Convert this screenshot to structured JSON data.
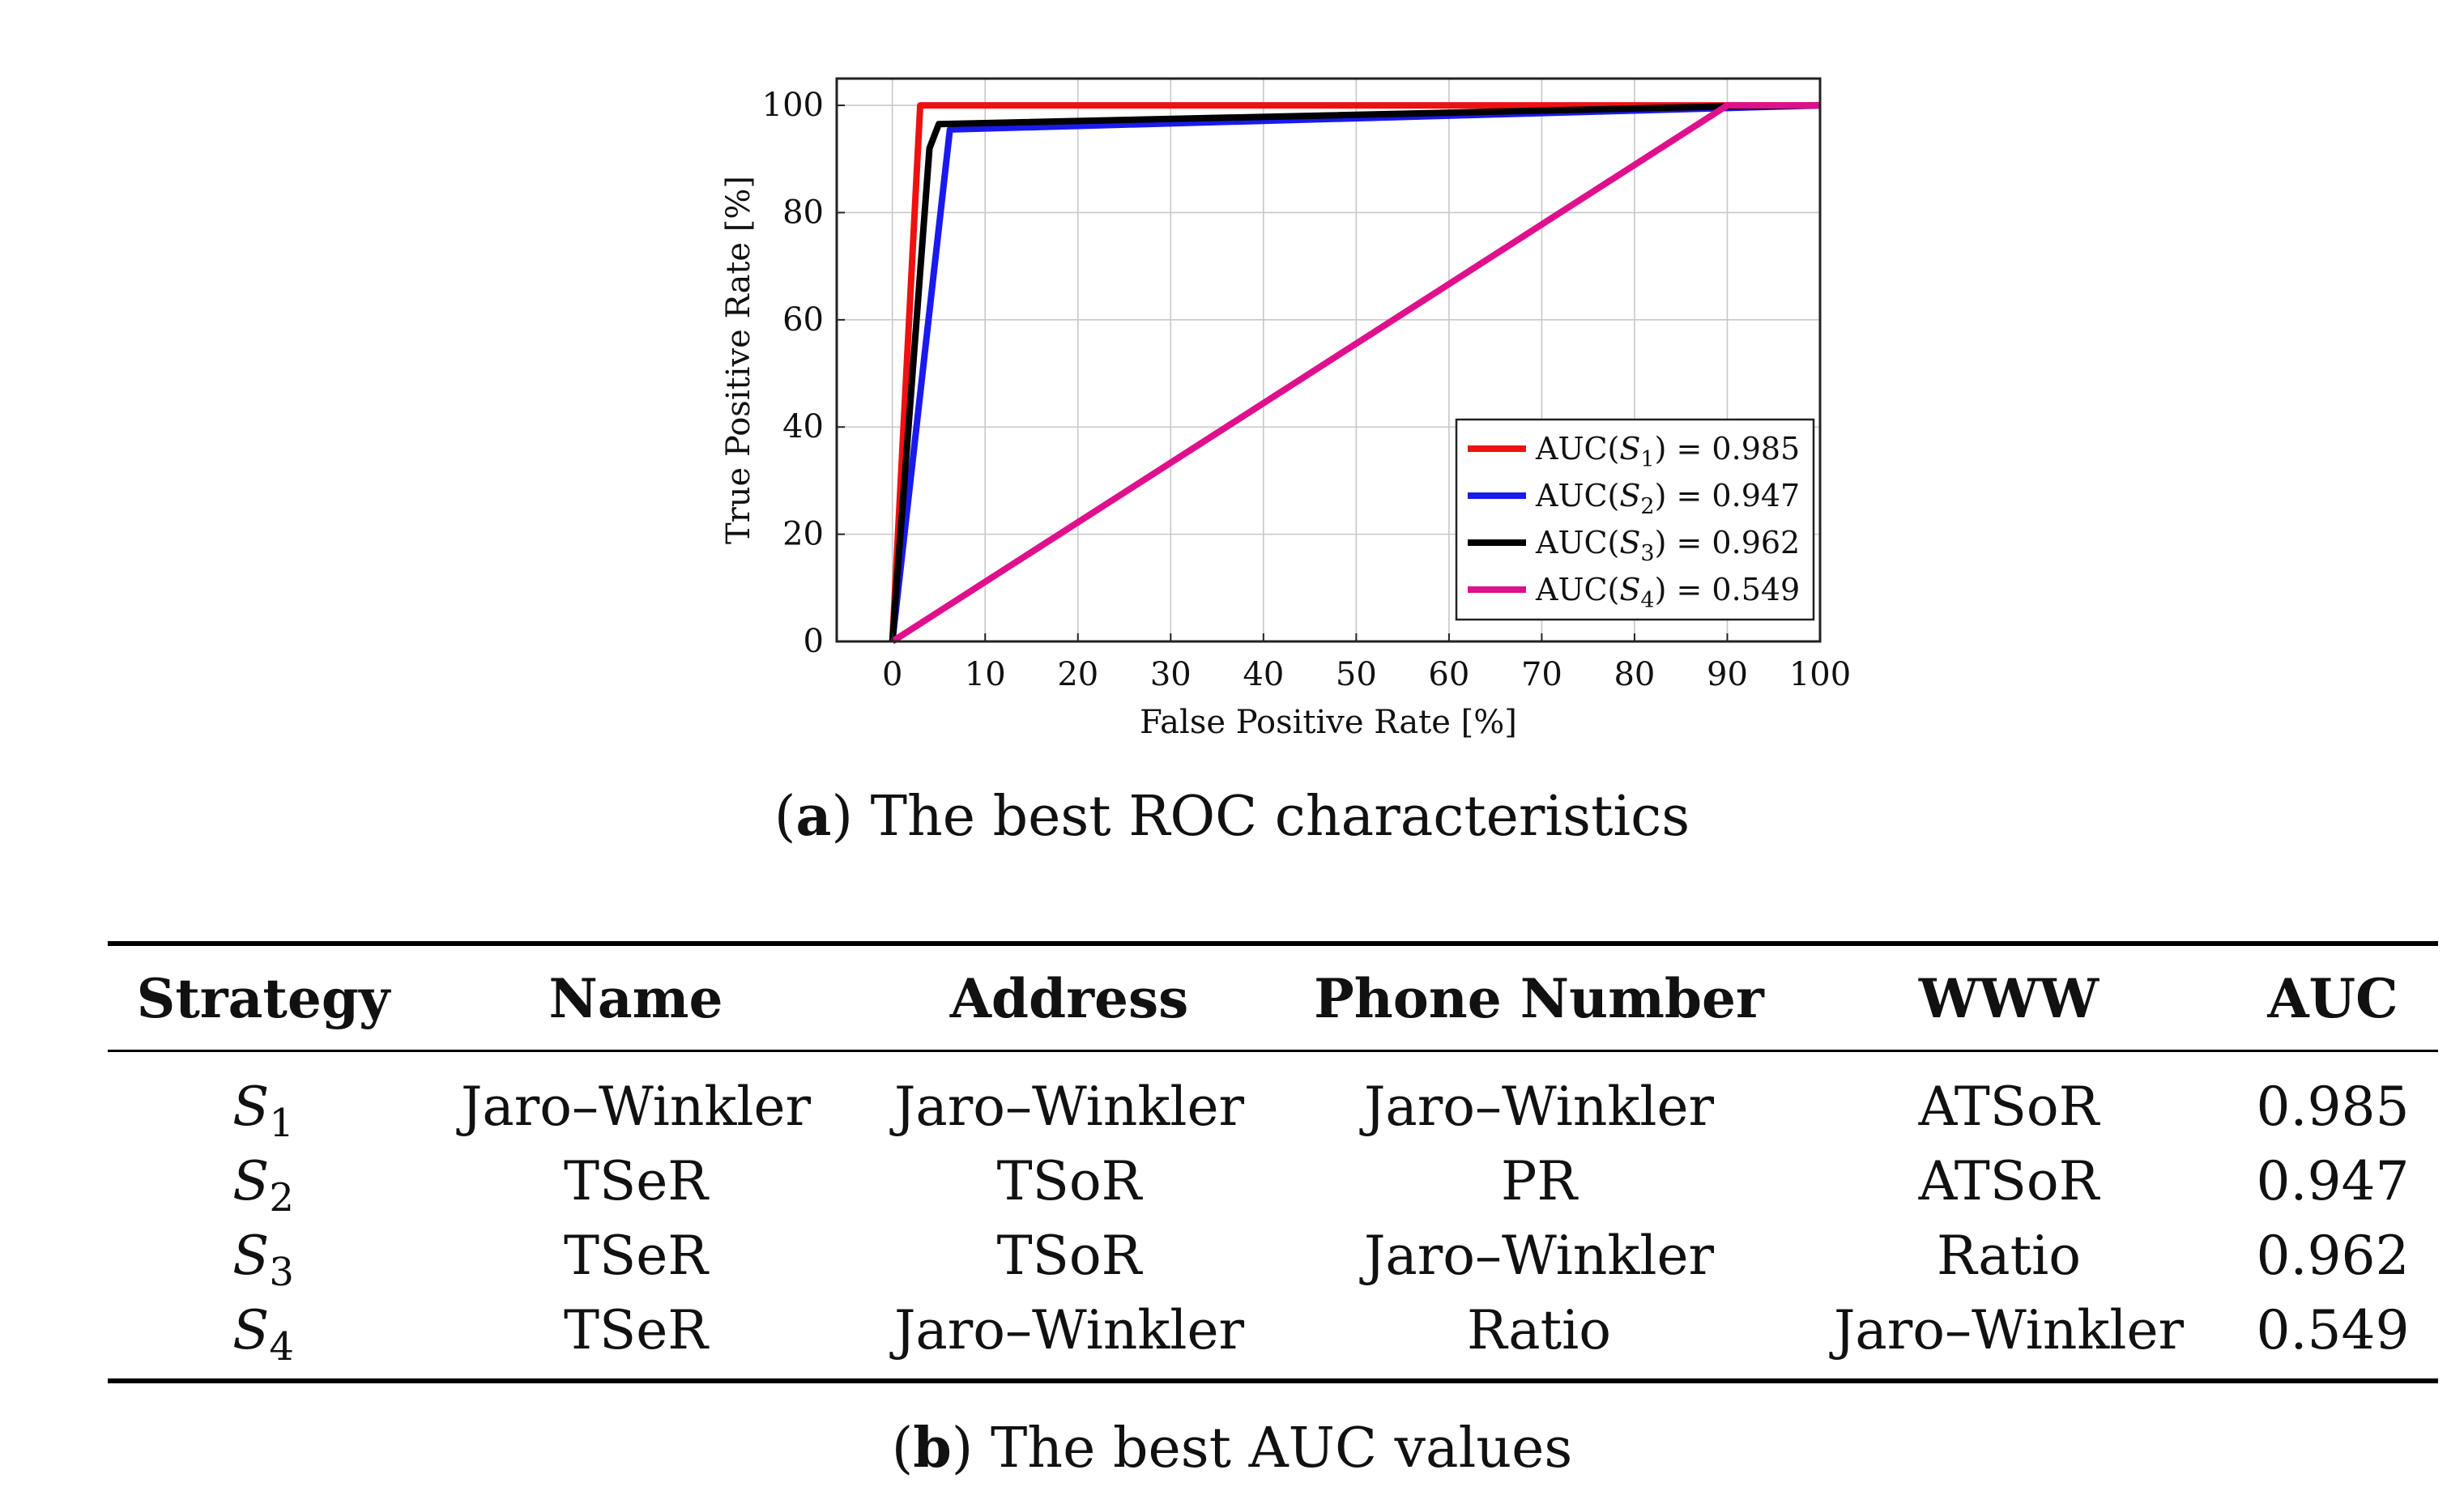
{
  "chart_data": {
    "type": "line",
    "xlabel": "False Positive Rate [%]",
    "ylabel": "True Positive Rate [%]",
    "xlim": [
      -6,
      100
    ],
    "ylim": [
      0,
      105
    ],
    "xticks": [
      0,
      10,
      20,
      30,
      40,
      50,
      60,
      70,
      80,
      90,
      100
    ],
    "yticks": [
      0,
      20,
      40,
      60,
      80,
      100
    ],
    "grid": true,
    "legend_position": "bottom-right",
    "series": [
      {
        "name": "AUC(S1) = 0.985",
        "label_prefix": "AUC(",
        "label_var": "S",
        "label_sub": "1",
        "label_suffix": ") = 0.985",
        "color": "#ee1111",
        "x": [
          0,
          3,
          100
        ],
        "y": [
          0,
          100,
          100
        ]
      },
      {
        "name": "AUC(S2) = 0.947",
        "label_prefix": "AUC(",
        "label_var": "S",
        "label_sub": "2",
        "label_suffix": ") = 0.947",
        "color": "#1a1aee",
        "x": [
          0,
          6.2,
          90,
          100
        ],
        "y": [
          0,
          95.5,
          99.5,
          100
        ]
      },
      {
        "name": "AUC(S3) = 0.962",
        "label_prefix": "AUC(",
        "label_var": "S",
        "label_sub": "3",
        "label_suffix": ") = 0.962",
        "color": "#000000",
        "x": [
          0,
          4,
          5,
          90,
          100
        ],
        "y": [
          0,
          92,
          96.5,
          99.8,
          100
        ]
      },
      {
        "name": "AUC(S4) = 0.549",
        "label_prefix": "AUC(",
        "label_var": "S",
        "label_sub": "4",
        "label_suffix": ") = 0.549",
        "color": "#e0108c",
        "x": [
          0,
          90,
          100
        ],
        "y": [
          0,
          100,
          100
        ]
      }
    ]
  },
  "captions": {
    "a_letter": "a",
    "a_text": "The best ROC characteristics",
    "b_letter": "b",
    "b_text": "The best AUC values"
  },
  "table": {
    "headers": [
      "Strategy",
      "Name",
      "Address",
      "Phone Number",
      "WWW",
      "AUC"
    ],
    "rows": [
      {
        "strategy_var": "S",
        "strategy_sub": "1",
        "name": "Jaro–Winkler",
        "address": "Jaro–Winkler",
        "phone": "Jaro–Winkler",
        "www": "ATSoR",
        "auc": "0.985"
      },
      {
        "strategy_var": "S",
        "strategy_sub": "2",
        "name": "TSeR",
        "address": "TSoR",
        "phone": "PR",
        "www": "ATSoR",
        "auc": "0.947"
      },
      {
        "strategy_var": "S",
        "strategy_sub": "3",
        "name": "TSeR",
        "address": "TSoR",
        "phone": "Jaro–Winkler",
        "www": "Ratio",
        "auc": "0.962"
      },
      {
        "strategy_var": "S",
        "strategy_sub": "4",
        "name": "TSeR",
        "address": "Jaro–Winkler",
        "phone": "Ratio",
        "www": "Jaro–Winkler",
        "auc": "0.549"
      }
    ]
  }
}
